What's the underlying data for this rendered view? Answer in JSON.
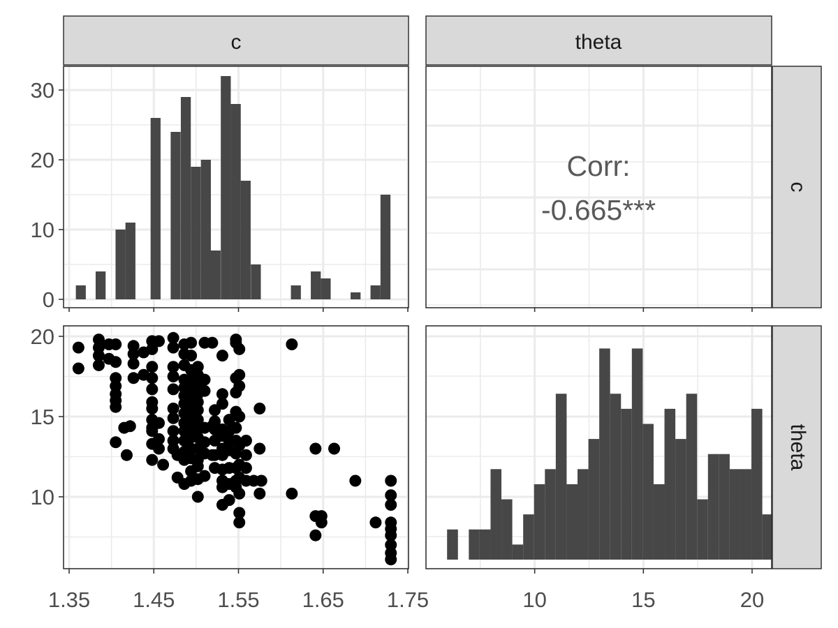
{
  "chart_data": [
    {
      "panel": "c-c",
      "type": "bar",
      "strip_top": "c",
      "strip_right": "c",
      "x_ticks": [],
      "y_ticks": [
        "0",
        "10",
        "20",
        "30"
      ],
      "xlim": [
        1.35,
        1.75
      ],
      "ylim": [
        0,
        33
      ],
      "grid": true,
      "bins": [
        {
          "x": 1.3638,
          "count": 2
        },
        {
          "x": 1.3872,
          "count": 4
        },
        {
          "x": 1.4107,
          "count": 10
        },
        {
          "x": 1.4224,
          "count": 11
        },
        {
          "x": 1.4521,
          "count": 26
        },
        {
          "x": 1.4758,
          "count": 24
        },
        {
          "x": 1.4878,
          "count": 29
        },
        {
          "x": 1.4996,
          "count": 19
        },
        {
          "x": 1.5115,
          "count": 20
        },
        {
          "x": 1.523,
          "count": 7
        },
        {
          "x": 1.535,
          "count": 32
        },
        {
          "x": 1.5468,
          "count": 28
        },
        {
          "x": 1.5585,
          "count": 17
        },
        {
          "x": 1.5705,
          "count": 5
        },
        {
          "x": 1.6178,
          "count": 2
        },
        {
          "x": 1.6413,
          "count": 4
        },
        {
          "x": 1.653,
          "count": 3
        },
        {
          "x": 1.6883,
          "count": 1
        },
        {
          "x": 1.7118,
          "count": 2
        },
        {
          "x": 1.7236,
          "count": 15
        }
      ]
    },
    {
      "panel": "c-theta",
      "type": "text",
      "strip_top": "theta",
      "strip_right": "c",
      "annotation_line1": "Corr:",
      "annotation_line2": "-0.665***",
      "correlation": -0.665
    },
    {
      "panel": "theta-c",
      "type": "scatter",
      "strip_top": "c",
      "strip_right": "theta",
      "xlabel": "",
      "ylabel": "",
      "x_ticks": [
        "1.35",
        "1.45",
        "1.55",
        "1.65",
        "1.75"
      ],
      "y_ticks": [
        "10",
        "15",
        "20"
      ],
      "xlim": [
        1.35,
        1.75
      ],
      "ylim": [
        5.9,
        20.6
      ],
      "grid": true,
      "points": [
        [
          1.361,
          19.3
        ],
        [
          1.361,
          18.0
        ],
        [
          1.385,
          19.8
        ],
        [
          1.385,
          19.3
        ],
        [
          1.385,
          18.8
        ],
        [
          1.385,
          18.2
        ],
        [
          1.397,
          19.5
        ],
        [
          1.397,
          18.6
        ],
        [
          1.405,
          19.5
        ],
        [
          1.405,
          18.4
        ],
        [
          1.405,
          17.4
        ],
        [
          1.405,
          16.9
        ],
        [
          1.405,
          16.4
        ],
        [
          1.405,
          16.0
        ],
        [
          1.405,
          15.6
        ],
        [
          1.405,
          13.4
        ],
        [
          1.415,
          14.3
        ],
        [
          1.418,
          12.6
        ],
        [
          1.422,
          14.4
        ],
        [
          1.426,
          19.4
        ],
        [
          1.426,
          18.9
        ],
        [
          1.426,
          18.3
        ],
        [
          1.426,
          17.4
        ],
        [
          1.438,
          19.0
        ],
        [
          1.438,
          17.6
        ],
        [
          1.448,
          19.7
        ],
        [
          1.448,
          19.2
        ],
        [
          1.448,
          18.1
        ],
        [
          1.448,
          17.4
        ],
        [
          1.448,
          16.7
        ],
        [
          1.448,
          15.9
        ],
        [
          1.448,
          15.5
        ],
        [
          1.448,
          14.8
        ],
        [
          1.448,
          14.3
        ],
        [
          1.448,
          14.1
        ],
        [
          1.448,
          13.3
        ],
        [
          1.448,
          12.3
        ],
        [
          1.456,
          19.7
        ],
        [
          1.456,
          14.6
        ],
        [
          1.456,
          13.6
        ],
        [
          1.456,
          13.0
        ],
        [
          1.461,
          12.0
        ],
        [
          1.473,
          19.9
        ],
        [
          1.473,
          19.3
        ],
        [
          1.473,
          18.1
        ],
        [
          1.473,
          17.5
        ],
        [
          1.473,
          16.7
        ],
        [
          1.473,
          15.5
        ],
        [
          1.473,
          14.9
        ],
        [
          1.473,
          14.1
        ],
        [
          1.473,
          13.5
        ],
        [
          1.473,
          13.0
        ],
        [
          1.478,
          12.6
        ],
        [
          1.478,
          11.2
        ],
        [
          1.486,
          19.5
        ],
        [
          1.486,
          18.9
        ],
        [
          1.486,
          18.2
        ],
        [
          1.486,
          17.3
        ],
        [
          1.486,
          16.8
        ],
        [
          1.486,
          16.3
        ],
        [
          1.486,
          15.8
        ],
        [
          1.486,
          15.2
        ],
        [
          1.486,
          14.6
        ],
        [
          1.486,
          14.1
        ],
        [
          1.486,
          13.5
        ],
        [
          1.486,
          12.8
        ],
        [
          1.486,
          12.3
        ],
        [
          1.486,
          10.8
        ],
        [
          1.494,
          19.6
        ],
        [
          1.494,
          18.8
        ],
        [
          1.494,
          17.9
        ],
        [
          1.494,
          17.3
        ],
        [
          1.494,
          16.6
        ],
        [
          1.494,
          16.1
        ],
        [
          1.494,
          15.4
        ],
        [
          1.494,
          14.9
        ],
        [
          1.494,
          14.3
        ],
        [
          1.494,
          13.7
        ],
        [
          1.494,
          13.0
        ],
        [
          1.494,
          12.4
        ],
        [
          1.494,
          11.6
        ],
        [
          1.494,
          11.0
        ],
        [
          1.498,
          15.0
        ],
        [
          1.498,
          14.6
        ],
        [
          1.498,
          14.2
        ],
        [
          1.498,
          13.9
        ],
        [
          1.502,
          18.1
        ],
        [
          1.502,
          17.6
        ],
        [
          1.502,
          17.0
        ],
        [
          1.502,
          16.4
        ],
        [
          1.502,
          15.9
        ],
        [
          1.502,
          15.4
        ],
        [
          1.502,
          14.8
        ],
        [
          1.502,
          14.2
        ],
        [
          1.502,
          13.7
        ],
        [
          1.502,
          13.0
        ],
        [
          1.502,
          12.3
        ],
        [
          1.502,
          11.9
        ],
        [
          1.502,
          11.1
        ],
        [
          1.502,
          10.0
        ],
        [
          1.51,
          19.6
        ],
        [
          1.51,
          17.3
        ],
        [
          1.51,
          16.6
        ],
        [
          1.51,
          14.3
        ],
        [
          1.51,
          13.4
        ],
        [
          1.51,
          12.7
        ],
        [
          1.51,
          11.3
        ],
        [
          1.519,
          19.6
        ],
        [
          1.519,
          14.4
        ],
        [
          1.519,
          12.6
        ],
        [
          1.522,
          15.4
        ],
        [
          1.522,
          14.7
        ],
        [
          1.522,
          14.2
        ],
        [
          1.522,
          13.5
        ],
        [
          1.522,
          12.6
        ],
        [
          1.522,
          11.8
        ],
        [
          1.531,
          18.8
        ],
        [
          1.531,
          16.4
        ],
        [
          1.531,
          15.8
        ],
        [
          1.531,
          14.2
        ],
        [
          1.531,
          13.8
        ],
        [
          1.531,
          13.0
        ],
        [
          1.531,
          12.6
        ],
        [
          1.531,
          11.7
        ],
        [
          1.531,
          11.0
        ],
        [
          1.531,
          10.6
        ],
        [
          1.531,
          9.5
        ],
        [
          1.539,
          14.8
        ],
        [
          1.539,
          14.1
        ],
        [
          1.539,
          13.5
        ],
        [
          1.539,
          12.9
        ],
        [
          1.539,
          11.8
        ],
        [
          1.539,
          10.8
        ],
        [
          1.539,
          9.8
        ],
        [
          1.547,
          19.8
        ],
        [
          1.547,
          19.6
        ],
        [
          1.547,
          17.4
        ],
        [
          1.547,
          16.5
        ],
        [
          1.547,
          15.3
        ],
        [
          1.547,
          14.3
        ],
        [
          1.547,
          13.5
        ],
        [
          1.547,
          12.7
        ],
        [
          1.547,
          11.8
        ],
        [
          1.547,
          11.0
        ],
        [
          1.547,
          10.6
        ],
        [
          1.551,
          19.2
        ],
        [
          1.551,
          17.6
        ],
        [
          1.551,
          16.9
        ],
        [
          1.551,
          15.0
        ],
        [
          1.551,
          13.2
        ],
        [
          1.551,
          12.0
        ],
        [
          1.551,
          11.2
        ],
        [
          1.551,
          10.2
        ],
        [
          1.551,
          9.0
        ],
        [
          1.551,
          8.4
        ],
        [
          1.559,
          13.5
        ],
        [
          1.559,
          12.6
        ],
        [
          1.559,
          11.8
        ],
        [
          1.559,
          11.0
        ],
        [
          1.568,
          11.0
        ],
        [
          1.577,
          11.0
        ],
        [
          1.575,
          15.5
        ],
        [
          1.575,
          10.2
        ],
        [
          1.575,
          13.0
        ],
        [
          1.613,
          19.5
        ],
        [
          1.613,
          10.2
        ],
        [
          1.641,
          13.0
        ],
        [
          1.641,
          8.8
        ],
        [
          1.641,
          7.6
        ],
        [
          1.648,
          8.8
        ],
        [
          1.648,
          8.4
        ],
        [
          1.663,
          13.0
        ],
        [
          1.688,
          11.0
        ],
        [
          1.712,
          8.4
        ],
        [
          1.73,
          11.0
        ],
        [
          1.73,
          10.1
        ],
        [
          1.73,
          9.5
        ],
        [
          1.73,
          8.4
        ],
        [
          1.73,
          8.0
        ],
        [
          1.73,
          7.6
        ],
        [
          1.73,
          7.0
        ],
        [
          1.73,
          6.5
        ],
        [
          1.73,
          6.1
        ]
      ]
    },
    {
      "panel": "theta-theta",
      "type": "bar",
      "strip_top": "theta",
      "strip_right": "theta",
      "x_ticks": [
        "10",
        "15",
        "20"
      ],
      "xlim": [
        5.0,
        20.9
      ],
      "ylim": [
        0,
        15.5
      ],
      "grid": true,
      "bins": [
        {
          "x": 6.22,
          "count": 2
        },
        {
          "x": 6.72,
          "count": 0
        },
        {
          "x": 7.22,
          "count": 2
        },
        {
          "x": 7.72,
          "count": 2
        },
        {
          "x": 8.22,
          "count": 6
        },
        {
          "x": 8.72,
          "count": 4
        },
        {
          "x": 9.22,
          "count": 1
        },
        {
          "x": 9.72,
          "count": 3
        },
        {
          "x": 10.22,
          "count": 5
        },
        {
          "x": 10.72,
          "count": 6
        },
        {
          "x": 11.22,
          "count": 11
        },
        {
          "x": 11.72,
          "count": 5
        },
        {
          "x": 12.22,
          "count": 6
        },
        {
          "x": 12.72,
          "count": 8
        },
        {
          "x": 13.22,
          "count": 14
        },
        {
          "x": 13.72,
          "count": 11
        },
        {
          "x": 14.22,
          "count": 10
        },
        {
          "x": 14.72,
          "count": 14
        },
        {
          "x": 15.22,
          "count": 9
        },
        {
          "x": 15.72,
          "count": 5
        },
        {
          "x": 16.22,
          "count": 10
        },
        {
          "x": 16.72,
          "count": 8
        },
        {
          "x": 17.22,
          "count": 11
        },
        {
          "x": 17.72,
          "count": 4
        },
        {
          "x": 18.22,
          "count": 7
        },
        {
          "x": 18.72,
          "count": 7
        },
        {
          "x": 19.22,
          "count": 6
        },
        {
          "x": 19.72,
          "count": 6
        },
        {
          "x": 20.22,
          "count": 10
        },
        {
          "x": 20.72,
          "count": 3
        }
      ]
    }
  ]
}
